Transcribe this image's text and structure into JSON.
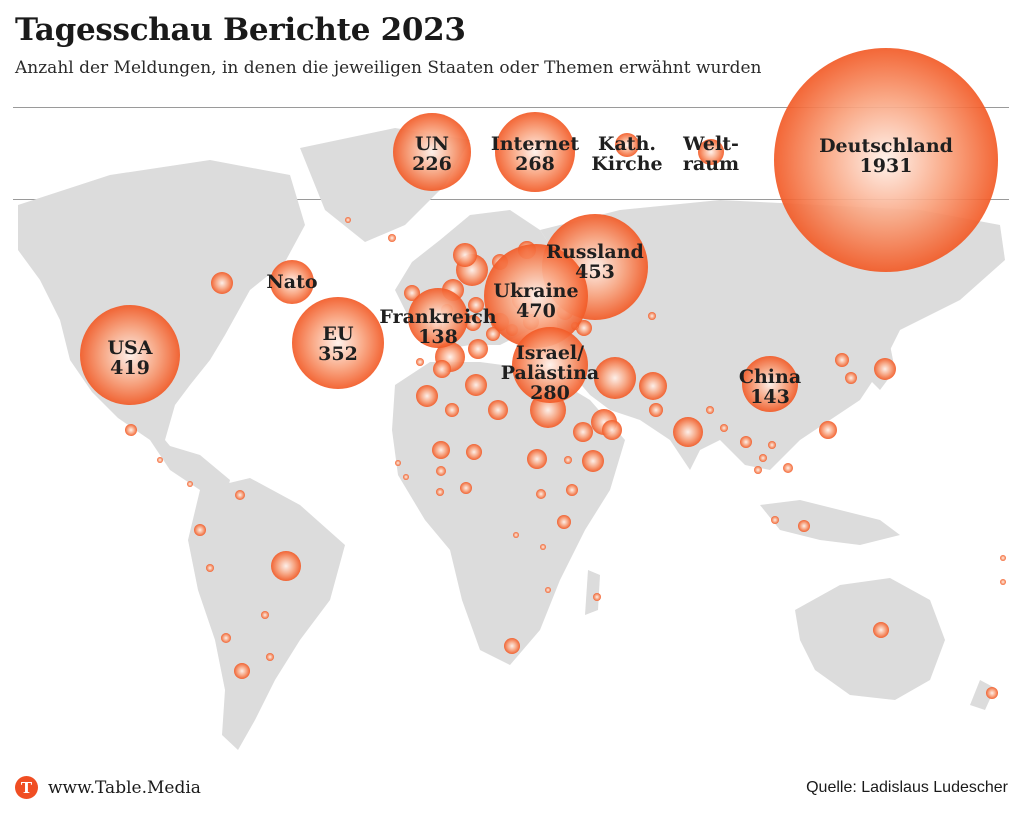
{
  "title": "Tagesschau Berichte 2023",
  "subtitle": "Anzahl der Meldungen, in denen die jeweiligen Staaten oder Themen erwähnt wurden",
  "footer": {
    "site": "www.Table.Media",
    "logo_letter": "T",
    "source": "Quelle: Ladislaus Ludescher"
  },
  "colors": {
    "bubble": "#f26b3a",
    "bubble_light": "#ffd7c4",
    "land": "#dcdcdc",
    "rule": "#9a9a9a",
    "logo": "#f04e23"
  },
  "legend_topics": [
    {
      "lines": [
        "UN",
        "226"
      ],
      "value": 226
    },
    {
      "lines": [
        "Internet",
        "268"
      ],
      "value": 268
    },
    {
      "lines": [
        "Kath.",
        "Kirche"
      ]
    },
    {
      "lines": [
        "Welt-",
        "raum"
      ]
    },
    {
      "lines": [
        "Deutschland",
        "1931"
      ],
      "value": 1931
    }
  ],
  "labeled_bubbles": [
    {
      "lines": [
        "USA",
        "419"
      ],
      "value": 419
    },
    {
      "lines": [
        "Nato"
      ]
    },
    {
      "lines": [
        "EU",
        "352"
      ],
      "value": 352
    },
    {
      "lines": [
        "Frankreich",
        "138"
      ],
      "value": 138
    },
    {
      "lines": [
        "Russland",
        "453"
      ],
      "value": 453
    },
    {
      "lines": [
        "Ukraine",
        "470"
      ],
      "value": 470
    },
    {
      "lines": [
        "Israel/",
        "Palästina",
        "280"
      ],
      "value": 280
    },
    {
      "lines": [
        "China",
        "143"
      ],
      "value": 143
    }
  ]
}
